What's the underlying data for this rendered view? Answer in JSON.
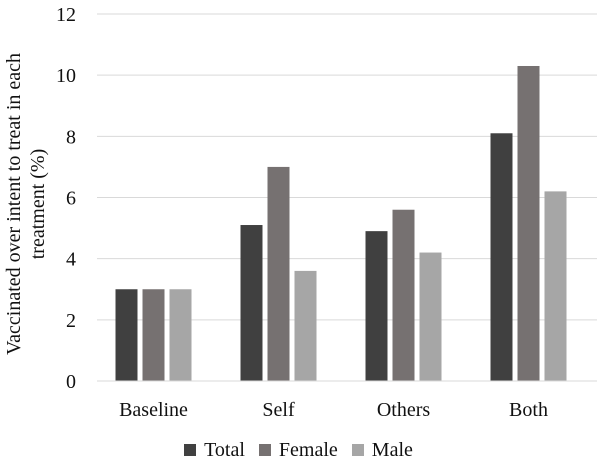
{
  "chart_data": {
    "type": "bar",
    "categories": [
      "Baseline",
      "Self",
      "Others",
      "Both"
    ],
    "series": [
      {
        "name": "Total",
        "values": [
          3.0,
          5.1,
          4.9,
          8.1
        ],
        "color": "#404040"
      },
      {
        "name": "Female",
        "values": [
          3.0,
          7.0,
          5.6,
          10.3
        ],
        "color": "#767171"
      },
      {
        "name": "Male",
        "values": [
          3.0,
          3.6,
          4.2,
          6.2
        ],
        "color": "#a6a6a6"
      }
    ],
    "ylabel_lines": [
      "Vaccinated over intent to treat in each",
      "treatment (%)"
    ],
    "xlabel": "",
    "ylim": [
      0,
      12
    ],
    "yticks": [
      0,
      2,
      4,
      6,
      8,
      10,
      12
    ],
    "grid": true,
    "legend_position": "bottom"
  }
}
